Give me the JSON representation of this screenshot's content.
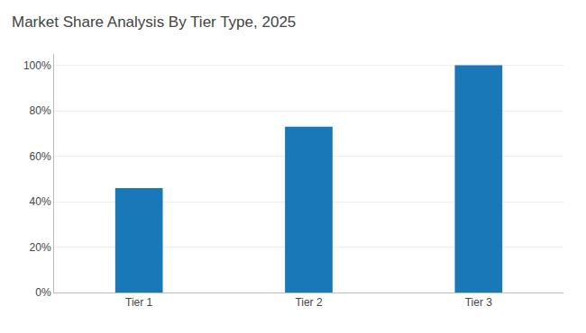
{
  "chart_data": {
    "type": "bar",
    "title": "Market Share Analysis By Tier Type, 2025",
    "categories": [
      "Tier 1",
      "Tier 2",
      "Tier 3"
    ],
    "values": [
      46,
      73,
      100
    ],
    "color": "#1878B8",
    "ylim": [
      0,
      105
    ],
    "yticks": [
      {
        "value": 0,
        "label": "0%"
      },
      {
        "value": 20,
        "label": "20%"
      },
      {
        "value": 40,
        "label": "40%"
      },
      {
        "value": 60,
        "label": "60%"
      },
      {
        "value": 80,
        "label": "80%"
      },
      {
        "value": 100,
        "label": "100%"
      }
    ],
    "grid": true
  }
}
